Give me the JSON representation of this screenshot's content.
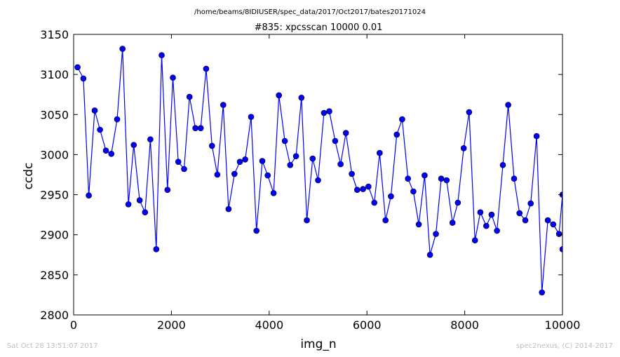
{
  "chart_data": {
    "type": "line",
    "suptitle": "/home/beams/8IDIUSER/spec_data/2017/Oct2017/bates20171024",
    "title": "#835: xpcsscan 10000 0.01",
    "xlabel": "img_n",
    "ylabel": "ccdc",
    "xlim": [
      0,
      10000
    ],
    "ylim": [
      2800,
      3150
    ],
    "xticks": [
      0,
      2000,
      4000,
      6000,
      8000,
      10000
    ],
    "yticks": [
      2800,
      2850,
      2900,
      2950,
      3000,
      3050,
      3100,
      3150
    ],
    "grid": false,
    "line_color": "#0000ff",
    "marker_color": "#0000ff",
    "series": [
      {
        "x": [
          80,
          200,
          310,
          430,
          540,
          660,
          770,
          890,
          1000,
          1120,
          1230,
          1350,
          1460,
          1570,
          1690,
          1800,
          1920,
          2030,
          2140,
          2260,
          2370,
          2490,
          2600,
          2710,
          2830,
          2940,
          3060,
          3170,
          3290,
          3400,
          3510,
          3630,
          3740,
          3860,
          3970,
          4090,
          4200,
          4320,
          4430,
          4550,
          4660,
          4770,
          4890,
          5000,
          5120,
          5230,
          5350,
          5460,
          5570,
          5690,
          5800,
          5920,
          6030,
          6150,
          6260,
          6380,
          6490,
          6610,
          6720,
          6840,
          6950,
          7060,
          7180,
          7290,
          7410,
          7520,
          7630,
          7750,
          7860,
          7980,
          8090,
          8210,
          8320,
          8440,
          8550,
          8660,
          8780,
          8890,
          9010,
          9120,
          9240,
          9350,
          9470,
          9580,
          9700,
          9810,
          9930,
          10000,
          10000
        ],
        "y": [
          3109,
          3095,
          2949,
          3055,
          3031,
          3005,
          3001,
          3044,
          3132,
          2938,
          3012,
          2943,
          2928,
          3019,
          2882,
          3124,
          2956,
          3096,
          2991,
          2982,
          3072,
          3033,
          3033,
          3107,
          3011,
          2975,
          3062,
          2932,
          2976,
          2991,
          2994,
          3047,
          2905,
          2992,
          2974,
          2952,
          3074,
          3017,
          2987,
          2998,
          3071,
          2918,
          2995,
          2968,
          3052,
          3054,
          3017,
          2988,
          3027,
          2976,
          2956,
          2957,
          2960,
          2940,
          3002,
          2918,
          2948,
          3025,
          3044,
          2970,
          2954,
          2913,
          2974,
          2875,
          2901,
          2970,
          2968,
          2915,
          2940,
          3008,
          3053,
          2893,
          2928,
          2911,
          2925,
          2905,
          2987,
          3062,
          2970,
          2927,
          2918,
          2939,
          3023,
          2828,
          2918,
          2913,
          2901,
          2950,
          2882
        ]
      }
    ]
  },
  "footer": {
    "left": "Sat Oct 28 13:51:07 2017",
    "right": "spec2nexus, (C) 2014-2017"
  }
}
